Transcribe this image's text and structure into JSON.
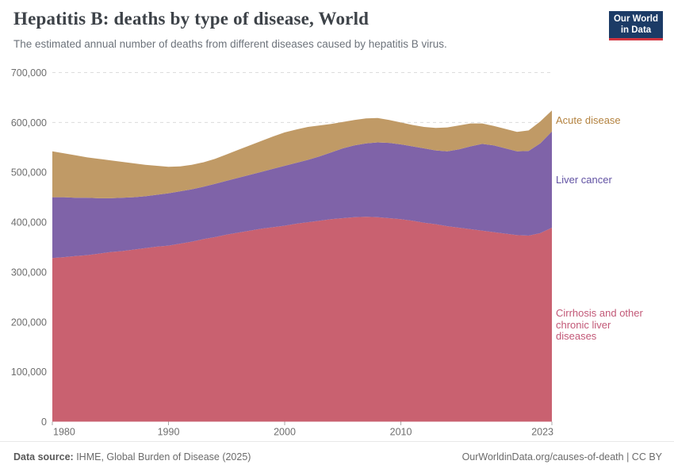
{
  "header": {
    "title": "Hepatitis B: deaths by type of disease, World",
    "subtitle": "The estimated annual number of deaths from different diseases caused by hepatitis B virus.",
    "logo": {
      "line1": "Our World",
      "line2": "in Data",
      "bg_color": "#1c3b66",
      "bar_color": "#d2343f"
    }
  },
  "chart_data": {
    "type": "area",
    "stacked": true,
    "title": "Hepatitis B: deaths by type of disease, World",
    "xlabel": "",
    "ylabel": "",
    "ylim": [
      0,
      700000
    ],
    "y_ticks": [
      0,
      100000,
      200000,
      300000,
      400000,
      500000,
      600000,
      700000
    ],
    "x_ticks": [
      1980,
      1990,
      2000,
      2010,
      2023
    ],
    "grid": "dashed-horizontal",
    "legend_position": "right-of-plot",
    "x": [
      1980,
      1981,
      1982,
      1983,
      1984,
      1985,
      1986,
      1987,
      1988,
      1989,
      1990,
      1991,
      1992,
      1993,
      1994,
      1995,
      1996,
      1997,
      1998,
      1999,
      2000,
      2001,
      2002,
      2003,
      2004,
      2005,
      2006,
      2007,
      2008,
      2009,
      2010,
      2011,
      2012,
      2013,
      2014,
      2015,
      2016,
      2017,
      2018,
      2019,
      2020,
      2021,
      2022,
      2023
    ],
    "series": [
      {
        "name": "Cirrhosis and other chronic liver diseases",
        "color": "#c96170",
        "label_color": "#c25877",
        "values": [
          328000,
          330000,
          332000,
          334000,
          337000,
          340000,
          342000,
          345000,
          348000,
          351000,
          353000,
          357000,
          361000,
          366000,
          370000,
          375000,
          379000,
          383000,
          387000,
          390000,
          393000,
          397000,
          400000,
          403000,
          406000,
          408000,
          410000,
          411000,
          410000,
          408000,
          406000,
          403000,
          399000,
          396000,
          392000,
          389000,
          386000,
          383000,
          380000,
          377000,
          374000,
          373000,
          378000,
          389000
        ]
      },
      {
        "name": "Liver cancer",
        "color": "#7f63a8",
        "label_color": "#6152a3",
        "values": [
          122000,
          120000,
          117000,
          115000,
          111000,
          108000,
          107000,
          105000,
          104000,
          104000,
          105000,
          105000,
          105000,
          105000,
          107000,
          108000,
          110000,
          112000,
          114000,
          117000,
          120000,
          122000,
          125000,
          129000,
          134000,
          140000,
          144000,
          147000,
          150000,
          151000,
          150000,
          149000,
          149000,
          148000,
          150000,
          157000,
          166000,
          174000,
          174000,
          171000,
          168000,
          170000,
          180000,
          193000
        ]
      },
      {
        "name": "Acute disease",
        "color": "#c09a66",
        "label_color": "#b3823f",
        "values": [
          92000,
          88000,
          85000,
          81000,
          79000,
          76000,
          72000,
          68000,
          63000,
          58000,
          53000,
          50000,
          49000,
          49000,
          50000,
          53000,
          56000,
          59000,
          62000,
          65000,
          67000,
          67000,
          66000,
          62000,
          57000,
          53000,
          51000,
          50000,
          49000,
          46000,
          44000,
          43000,
          43000,
          45000,
          48000,
          48000,
          46000,
          41000,
          39000,
          39000,
          39000,
          41000,
          44000,
          42000
        ]
      }
    ]
  },
  "footer": {
    "source_label": "Data source:",
    "source_text": " IHME, Global Burden of Disease (2025)",
    "link_text": "OurWorldinData.org/causes-of-death | CC BY"
  }
}
